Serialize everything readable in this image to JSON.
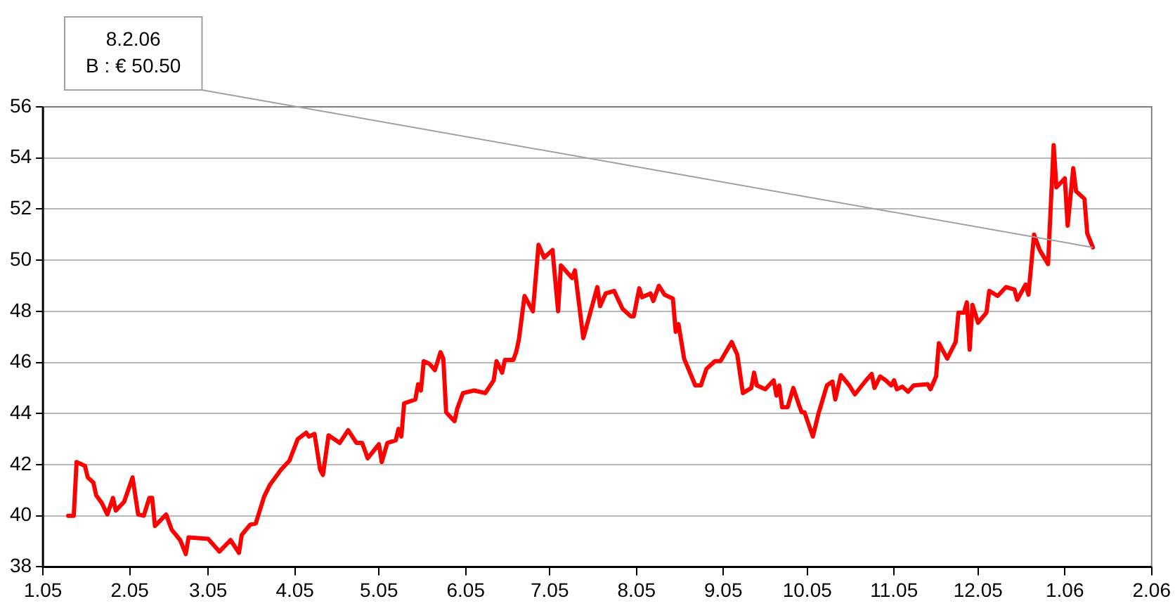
{
  "chart_data": {
    "type": "line",
    "xlim": [
      "2005-01",
      "2006-02"
    ],
    "xticks": [
      {
        "value": "2005-01",
        "label": "1.05"
      },
      {
        "value": "2005-02",
        "label": "2.05"
      },
      {
        "value": "2005-03",
        "label": "3.05"
      },
      {
        "value": "2005-04",
        "label": "4.05"
      },
      {
        "value": "2005-05",
        "label": "5.05"
      },
      {
        "value": "2005-06",
        "label": "6.05"
      },
      {
        "value": "2005-07",
        "label": "7.05"
      },
      {
        "value": "2005-08",
        "label": "8.05"
      },
      {
        "value": "2005-09",
        "label": "9.05"
      },
      {
        "value": "2005-10",
        "label": "10.05"
      },
      {
        "value": "2005-11",
        "label": "11.05"
      },
      {
        "value": "2005-12",
        "label": "12.05"
      },
      {
        "value": "2006-01",
        "label": "1.06"
      },
      {
        "value": "2006-02",
        "label": "2.06"
      }
    ],
    "ylim": [
      38,
      56
    ],
    "yticks": [
      38,
      40,
      42,
      44,
      46,
      48,
      50,
      52,
      54,
      56
    ],
    "grid": "y",
    "legend": false,
    "marker": "none",
    "line_style": "solid",
    "annotations": [
      {
        "text": "8.2.06\nB : € 50.50",
        "x": "2006-01-11",
        "y": 50.5
      }
    ],
    "series": [
      {
        "color": "#ff0000",
        "x": [
          "2005-01-10",
          "2005-01-12",
          "2005-01-13",
          "2005-01-16",
          "2005-01-17",
          "2005-01-19",
          "2005-01-20",
          "2005-01-22",
          "2005-01-24",
          "2005-01-26",
          "2005-01-27",
          "2005-01-30",
          "2005-02-02",
          "2005-02-04",
          "2005-02-06",
          "2005-02-08",
          "2005-02-09",
          "2005-02-10",
          "2005-02-14",
          "2005-02-16",
          "2005-02-19",
          "2005-02-21",
          "2005-02-22",
          "2005-03-01",
          "2005-03-05",
          "2005-03-09",
          "2005-03-12",
          "2005-03-13",
          "2005-03-16",
          "2005-03-18",
          "2005-03-21",
          "2005-03-23",
          "2005-03-27",
          "2005-03-30",
          "2005-04-02",
          "2005-04-05",
          "2005-04-06",
          "2005-04-08",
          "2005-04-10",
          "2005-04-11",
          "2005-04-13",
          "2005-04-17",
          "2005-04-20",
          "2005-04-23",
          "2005-04-25",
          "2005-04-27",
          "2005-05-01",
          "2005-05-02",
          "2005-05-04",
          "2005-05-07",
          "2005-05-08",
          "2005-05-09",
          "2005-05-10",
          "2005-05-14",
          "2005-05-15",
          "2005-05-16",
          "2005-05-17",
          "2005-05-19",
          "2005-05-21",
          "2005-05-23",
          "2005-05-24",
          "2005-05-25",
          "2005-05-28",
          "2005-05-29",
          "2005-05-31",
          "2005-06-04",
          "2005-06-08",
          "2005-06-11",
          "2005-06-12",
          "2005-06-14",
          "2005-06-15",
          "2005-06-18",
          "2005-06-19",
          "2005-06-20",
          "2005-06-22",
          "2005-06-25",
          "2005-06-27",
          "2005-06-29",
          "2005-07-02",
          "2005-07-04",
          "2005-07-05",
          "2005-07-09",
          "2005-07-10",
          "2005-07-13",
          "2005-07-18",
          "2005-07-19",
          "2005-07-21",
          "2005-07-24",
          "2005-07-27",
          "2005-07-30",
          "2005-07-31",
          "2005-08-02",
          "2005-08-03",
          "2005-08-06",
          "2005-08-07",
          "2005-08-09",
          "2005-08-11",
          "2005-08-14",
          "2005-08-15",
          "2005-08-16",
          "2005-08-18",
          "2005-08-22",
          "2005-08-24",
          "2005-08-26",
          "2005-08-29",
          "2005-08-31",
          "2005-09-04",
          "2005-09-06",
          "2005-09-08",
          "2005-09-11",
          "2005-09-12",
          "2005-09-13",
          "2005-09-16",
          "2005-09-19",
          "2005-09-20",
          "2005-09-21",
          "2005-09-22",
          "2005-09-24",
          "2005-09-26",
          "2005-09-28",
          "2005-09-29",
          "2005-09-30",
          "2005-10-03",
          "2005-10-05",
          "2005-10-08",
          "2005-10-10",
          "2005-10-11",
          "2005-10-13",
          "2005-10-16",
          "2005-10-18",
          "2005-10-22",
          "2005-10-24",
          "2005-10-25",
          "2005-10-27",
          "2005-10-29",
          "2005-10-31",
          "2005-11-01",
          "2005-11-02",
          "2005-11-04",
          "2005-11-06",
          "2005-11-08",
          "2005-11-13",
          "2005-11-14",
          "2005-11-16",
          "2005-11-17",
          "2005-11-20",
          "2005-11-23",
          "2005-11-24",
          "2005-11-26",
          "2005-11-27",
          "2005-11-28",
          "2005-11-29",
          "2005-12-01",
          "2005-12-04",
          "2005-12-05",
          "2005-12-08",
          "2005-12-11",
          "2005-12-14",
          "2005-12-15",
          "2005-12-18",
          "2005-12-19",
          "2005-12-21",
          "2005-12-23",
          "2005-12-26",
          "2005-12-28",
          "2005-12-29",
          "2006-01-01",
          "2006-01-02",
          "2006-01-04",
          "2006-01-05",
          "2006-01-08",
          "2006-01-09",
          "2006-01-11"
        ],
        "values": [
          40.0,
          40.0,
          42.1,
          41.95,
          41.5,
          41.3,
          40.8,
          40.5,
          40.05,
          40.7,
          40.2,
          40.55,
          41.5,
          40.05,
          40.0,
          40.7,
          40.7,
          39.6,
          40.05,
          39.45,
          39.05,
          38.5,
          39.15,
          39.1,
          38.6,
          39.05,
          38.55,
          39.25,
          39.65,
          39.7,
          40.75,
          41.2,
          41.8,
          42.15,
          43.0,
          43.25,
          43.1,
          43.2,
          41.8,
          41.6,
          43.15,
          42.85,
          43.35,
          42.85,
          42.85,
          42.25,
          42.8,
          42.1,
          42.85,
          42.95,
          43.4,
          43.1,
          44.4,
          44.55,
          45.15,
          44.9,
          46.05,
          45.95,
          45.7,
          46.4,
          46.15,
          44.05,
          43.7,
          44.2,
          44.8,
          44.9,
          44.8,
          45.3,
          46.05,
          45.6,
          46.1,
          46.1,
          46.4,
          46.9,
          48.6,
          48.0,
          50.6,
          50.1,
          50.4,
          48.0,
          49.8,
          49.3,
          49.6,
          46.95,
          48.95,
          48.2,
          48.7,
          48.8,
          48.1,
          47.8,
          47.8,
          48.9,
          48.55,
          48.7,
          48.4,
          49.0,
          48.65,
          48.5,
          47.2,
          47.5,
          46.15,
          45.1,
          45.1,
          45.75,
          46.05,
          46.05,
          46.8,
          46.3,
          44.8,
          45.0,
          45.6,
          45.1,
          44.95,
          45.3,
          44.7,
          45.1,
          44.25,
          44.25,
          45.0,
          44.35,
          44.05,
          44.05,
          43.1,
          44.0,
          45.1,
          45.25,
          44.55,
          45.5,
          45.1,
          44.75,
          45.3,
          45.55,
          45.0,
          45.45,
          45.3,
          45.1,
          45.3,
          44.95,
          45.05,
          44.85,
          45.1,
          45.15,
          44.95,
          45.45,
          46.75,
          46.15,
          46.8,
          47.95,
          47.95,
          48.35,
          46.5,
          48.25,
          47.55,
          47.95,
          48.8,
          48.6,
          48.95,
          48.85,
          48.45,
          49.05,
          48.65,
          51.0,
          50.4,
          49.85,
          54.5,
          52.85,
          53.2,
          51.35,
          53.6,
          52.7,
          52.4,
          51.05,
          50.5
        ]
      }
    ]
  }
}
